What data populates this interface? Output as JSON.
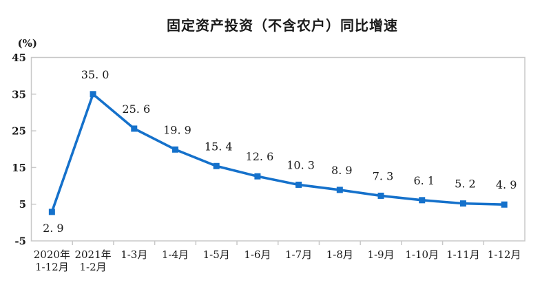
{
  "colors": {
    "line": "#1571CB",
    "marker": "#1571CB",
    "plot_border": "#C8C8C8",
    "text": "#1A1A1A",
    "background": "#FFFFFF"
  },
  "chart_data": {
    "type": "line",
    "title": "固定资产投资（不含农户）同比增速",
    "ylabel": "(%)",
    "xlabel": "",
    "categories": [
      "2020年\n1-12月",
      "2021年\n1-2月",
      "1-3月",
      "1-4月",
      "1-5月",
      "1-6月",
      "1-7月",
      "1-8月",
      "1-9月",
      "1-10月",
      "1-11月",
      "1-12月"
    ],
    "values": [
      2.9,
      35.0,
      25.6,
      19.9,
      15.4,
      12.6,
      10.3,
      8.9,
      7.3,
      6.1,
      5.2,
      4.9
    ],
    "value_labels": [
      "2. 9",
      "35. 0",
      "25. 6",
      "19. 9",
      "15. 4",
      "12. 6",
      "10. 3",
      "8. 9",
      "7. 3",
      "6. 1",
      "5. 2",
      "4. 9"
    ],
    "ylim": [
      -5,
      45
    ],
    "yticks": [
      45,
      35,
      25,
      15,
      5,
      -5
    ],
    "grid": false,
    "legend": "none",
    "marker": "square",
    "line_color": "#1571CB",
    "first_label_below": true
  }
}
